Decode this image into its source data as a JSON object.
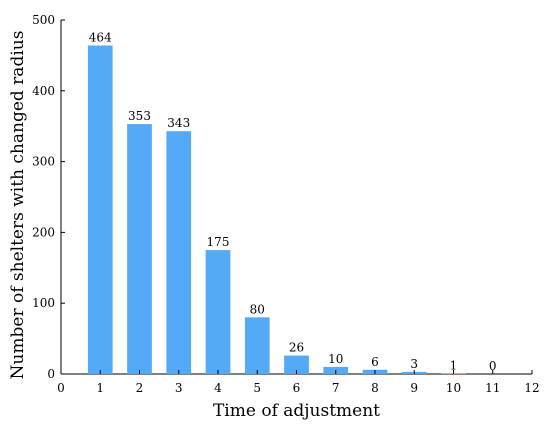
{
  "chart_data": {
    "type": "bar",
    "title": "",
    "xlabel": "Time of adjustment",
    "ylabel": "Number of shelters with changed radius",
    "x": [
      1,
      2,
      3,
      4,
      5,
      6,
      7,
      8,
      9,
      10,
      11
    ],
    "values": [
      464,
      353,
      343,
      175,
      80,
      26,
      10,
      6,
      3,
      1,
      0
    ],
    "data_labels": [
      "464",
      "353",
      "343",
      "175",
      "80",
      "26",
      "10",
      "6",
      "3",
      "1",
      "0"
    ],
    "xlim": [
      0,
      12
    ],
    "ylim": [
      0,
      500
    ],
    "xticks": [
      0,
      1,
      2,
      3,
      4,
      5,
      6,
      7,
      8,
      9,
      10,
      11,
      12
    ],
    "yticks": [
      0,
      100,
      200,
      300,
      400,
      500
    ],
    "grid": false,
    "bar_color": "#55aaf5"
  }
}
